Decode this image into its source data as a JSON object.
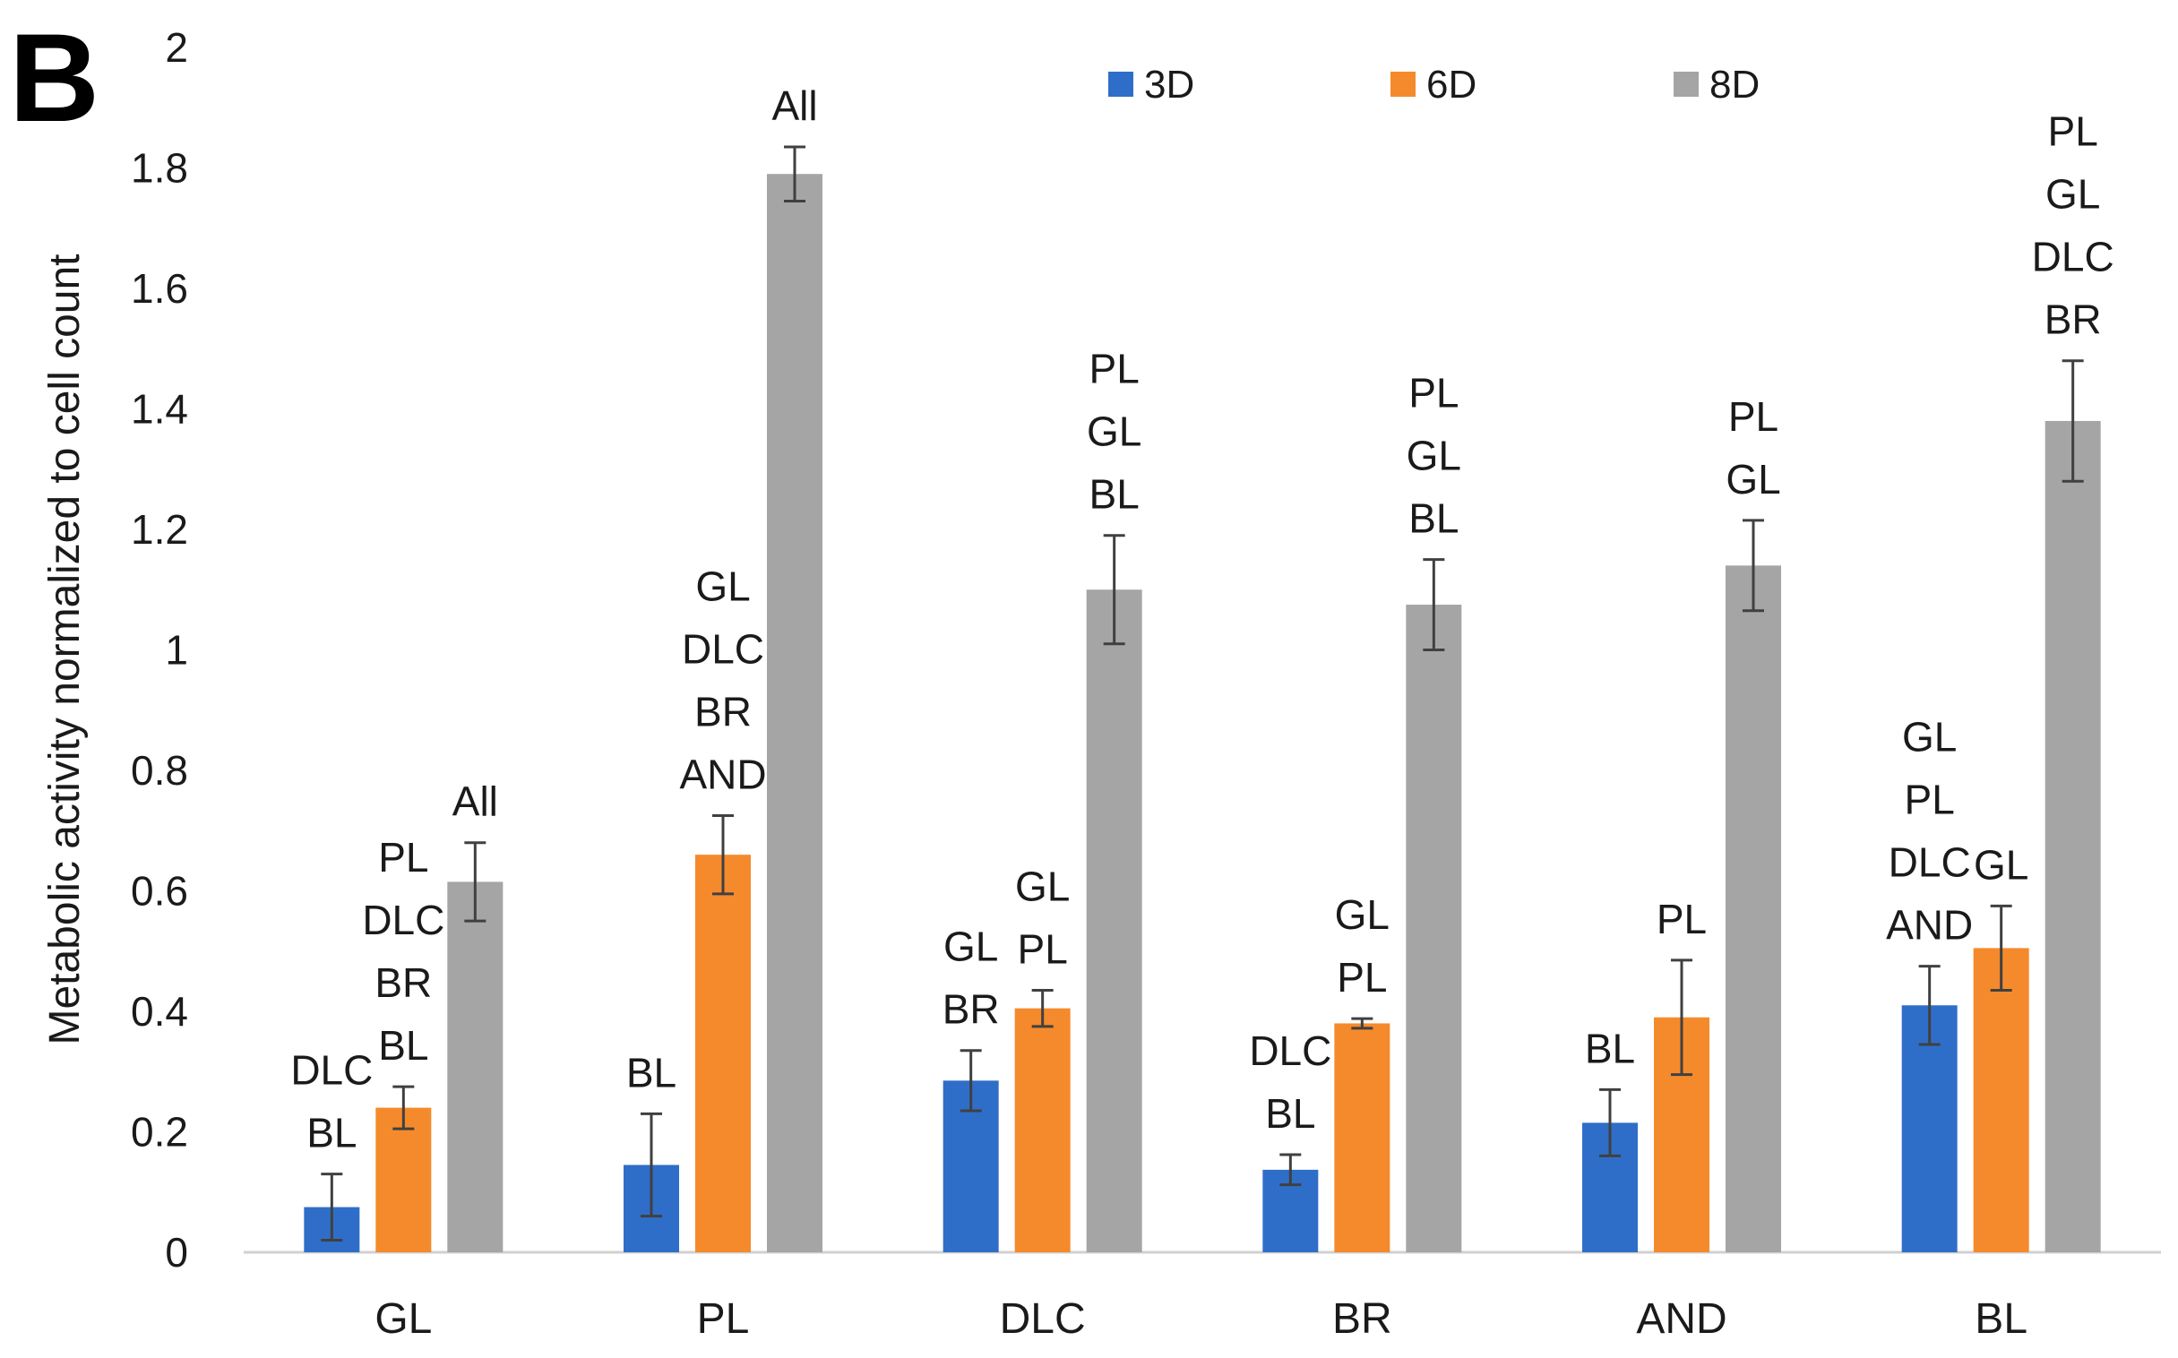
{
  "panel_label": "B",
  "chart_data": {
    "type": "bar",
    "ylabel": "Metabolic activity normalized to cell count",
    "xlabel": "",
    "ylim": [
      0,
      2
    ],
    "yticks": [
      "0",
      "0.2",
      "0.4",
      "0.6",
      "0.8",
      "1",
      "1.2",
      "1.4",
      "1.6",
      "1.8",
      "2"
    ],
    "grid": false,
    "legend_position": "top",
    "categories": [
      "GL",
      "PL",
      "DLC",
      "BR",
      "AND",
      "BL"
    ],
    "series": [
      {
        "name": "3D",
        "color": "#2f6ec8",
        "values": [
          0.075,
          0.145,
          0.285,
          0.137,
          0.215,
          0.41
        ],
        "errors": [
          0.055,
          0.085,
          0.05,
          0.025,
          0.055,
          0.065
        ],
        "sig": [
          [
            "DLC",
            "BL"
          ],
          [
            "BL"
          ],
          [
            "GL",
            "BR"
          ],
          [
            "DLC",
            "BL"
          ],
          [
            "BL"
          ],
          [
            "GL",
            "PL",
            "DLC",
            "AND"
          ]
        ]
      },
      {
        "name": "6D",
        "color": "#f58a2c",
        "values": [
          0.24,
          0.66,
          0.405,
          0.38,
          0.39,
          0.505
        ],
        "errors": [
          0.035,
          0.065,
          0.03,
          0.008,
          0.095,
          0.07
        ],
        "sig": [
          [
            "PL",
            "DLC",
            "BR",
            "BL"
          ],
          [
            "GL",
            "DLC",
            "BR",
            "AND"
          ],
          [
            "GL",
            "PL"
          ],
          [
            "GL",
            "PL"
          ],
          [
            "PL"
          ],
          [
            "GL"
          ]
        ]
      },
      {
        "name": "8D",
        "color": "#a5a5a5",
        "values": [
          0.615,
          1.79,
          1.1,
          1.075,
          1.14,
          1.38
        ],
        "errors": [
          0.065,
          0.045,
          0.09,
          0.075,
          0.075,
          0.1
        ],
        "sig": [
          [
            "All"
          ],
          [
            "All"
          ],
          [
            "PL",
            "GL",
            "BL"
          ],
          [
            "PL",
            "GL",
            "BL"
          ],
          [
            "PL",
            "GL"
          ],
          [
            "PL",
            "GL",
            "DLC",
            "BR"
          ]
        ]
      }
    ]
  }
}
